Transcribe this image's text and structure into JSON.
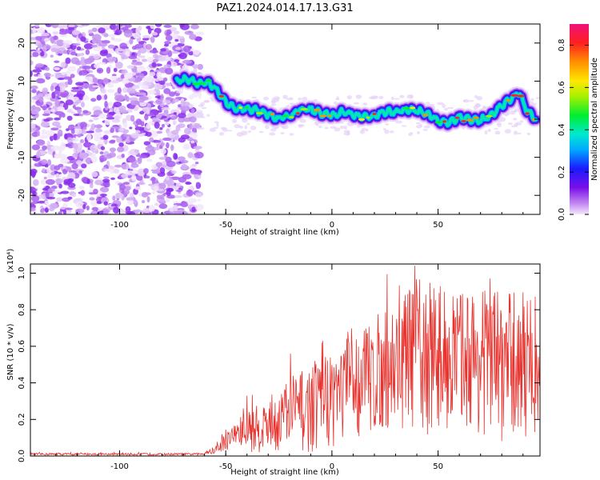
{
  "title": "PAZ1.2024.014.17.13.G31",
  "chart_data": [
    {
      "type": "heatmap",
      "title": "PAZ1.2024.014.17.13.G31",
      "xlabel": "Height of straight line (km)",
      "ylabel": "Frequency (Hz)",
      "xlim": [
        -142,
        98
      ],
      "ylim": [
        -25,
        25
      ],
      "xticks": [
        -100,
        -50,
        0,
        50
      ],
      "yticks": [
        -20,
        -10,
        0,
        10,
        20
      ],
      "colorbar": {
        "label": "Normalized spectral amplitude",
        "range": [
          0,
          0.9
        ],
        "ticks": [
          "0.0",
          "0.2",
          "0.4",
          "0.6",
          "0.8"
        ]
      },
      "ridge": {
        "heights_km": [
          -73,
          -68,
          -63,
          -58,
          -54,
          -50,
          -45,
          -40,
          -35,
          -30,
          -25,
          -20,
          -15,
          -10,
          -5,
          0,
          5,
          10,
          15,
          20,
          25,
          30,
          35,
          40,
          45,
          50,
          55,
          60,
          65,
          70,
          75,
          80,
          85,
          88,
          92,
          96
        ],
        "frequency_hz": [
          10,
          10.5,
          9.5,
          9.5,
          7.5,
          4.5,
          2.5,
          2.8,
          2.2,
          1.2,
          0.3,
          0.8,
          2.5,
          2.6,
          1.5,
          1.0,
          1.8,
          1.2,
          0.5,
          0.8,
          2.0,
          1.8,
          2.5,
          2.2,
          1.5,
          -0.5,
          -1,
          0.5,
          0,
          -0.2,
          1.0,
          3.5,
          5.5,
          7.0,
          2.0,
          0
        ]
      }
    },
    {
      "type": "line",
      "xlabel": "Height of straight line (km)",
      "ylabel": "SNR (10 * v/v)",
      "y_multiplier": "(x10⁴)",
      "xlim": [
        -142,
        98
      ],
      "ylim": [
        0,
        1.05
      ],
      "xticks": [
        -100,
        -50,
        0,
        50
      ],
      "yticks": [
        "0.0",
        "0.2",
        "0.4",
        "0.6",
        "0.8",
        "1.0"
      ],
      "color": "#e8322d",
      "envelope": {
        "x": [
          -142,
          -62,
          -55,
          -50,
          -45,
          -40,
          -35,
          -30,
          -25,
          -20,
          -15,
          -10,
          -5,
          0,
          10,
          20,
          30,
          40,
          45,
          50,
          60,
          70,
          80,
          90,
          98
        ],
        "baseline": [
          0.01,
          0.01,
          0.03,
          0.08,
          0.12,
          0.14,
          0.15,
          0.17,
          0.2,
          0.22,
          0.24,
          0.26,
          0.3,
          0.32,
          0.38,
          0.44,
          0.5,
          0.55,
          0.56,
          0.55,
          0.53,
          0.52,
          0.5,
          0.5,
          0.5
        ],
        "peak_amplitude": [
          0.006,
          0.006,
          0.02,
          0.05,
          0.07,
          0.12,
          0.13,
          0.15,
          0.18,
          0.2,
          0.22,
          0.25,
          0.25,
          0.28,
          0.3,
          0.32,
          0.35,
          0.42,
          0.45,
          0.4,
          0.38,
          0.4,
          0.42,
          0.4,
          0.38
        ]
      }
    }
  ]
}
